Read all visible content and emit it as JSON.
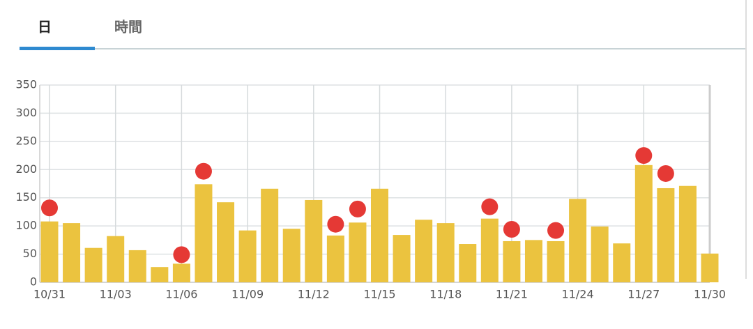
{
  "tabs": [
    "日",
    "時間"
  ],
  "chart_data": {
    "type": "bar",
    "categories": [
      "10/31",
      null,
      null,
      "11/03",
      null,
      null,
      "11/06",
      null,
      null,
      "11/09",
      null,
      null,
      "11/12",
      null,
      null,
      "11/15",
      null,
      null,
      "11/18",
      null,
      null,
      "11/21",
      null,
      null,
      "11/24",
      null,
      null,
      "11/27",
      null,
      null,
      "11/30"
    ],
    "series": [
      {
        "type": "bar",
        "color": "#ebc33f",
        "values": [
          108,
          105,
          61,
          82,
          57,
          27,
          33,
          174,
          142,
          92,
          166,
          95,
          146,
          83,
          106,
          166,
          84,
          111,
          105,
          68,
          113,
          73,
          75,
          73,
          148,
          99,
          69,
          208,
          167,
          171,
          51
        ]
      },
      {
        "type": "scatter",
        "color": "#e53935",
        "values": [
          132,
          null,
          null,
          null,
          null,
          null,
          49,
          197,
          null,
          null,
          null,
          null,
          null,
          103,
          130,
          null,
          null,
          null,
          null,
          null,
          134,
          94,
          null,
          92,
          null,
          null,
          null,
          225,
          193,
          null,
          null
        ]
      }
    ],
    "ylim": [
      0,
      350
    ],
    "yticks": [
      0,
      50,
      100,
      150,
      200,
      250,
      300,
      350
    ],
    "grid": true
  }
}
